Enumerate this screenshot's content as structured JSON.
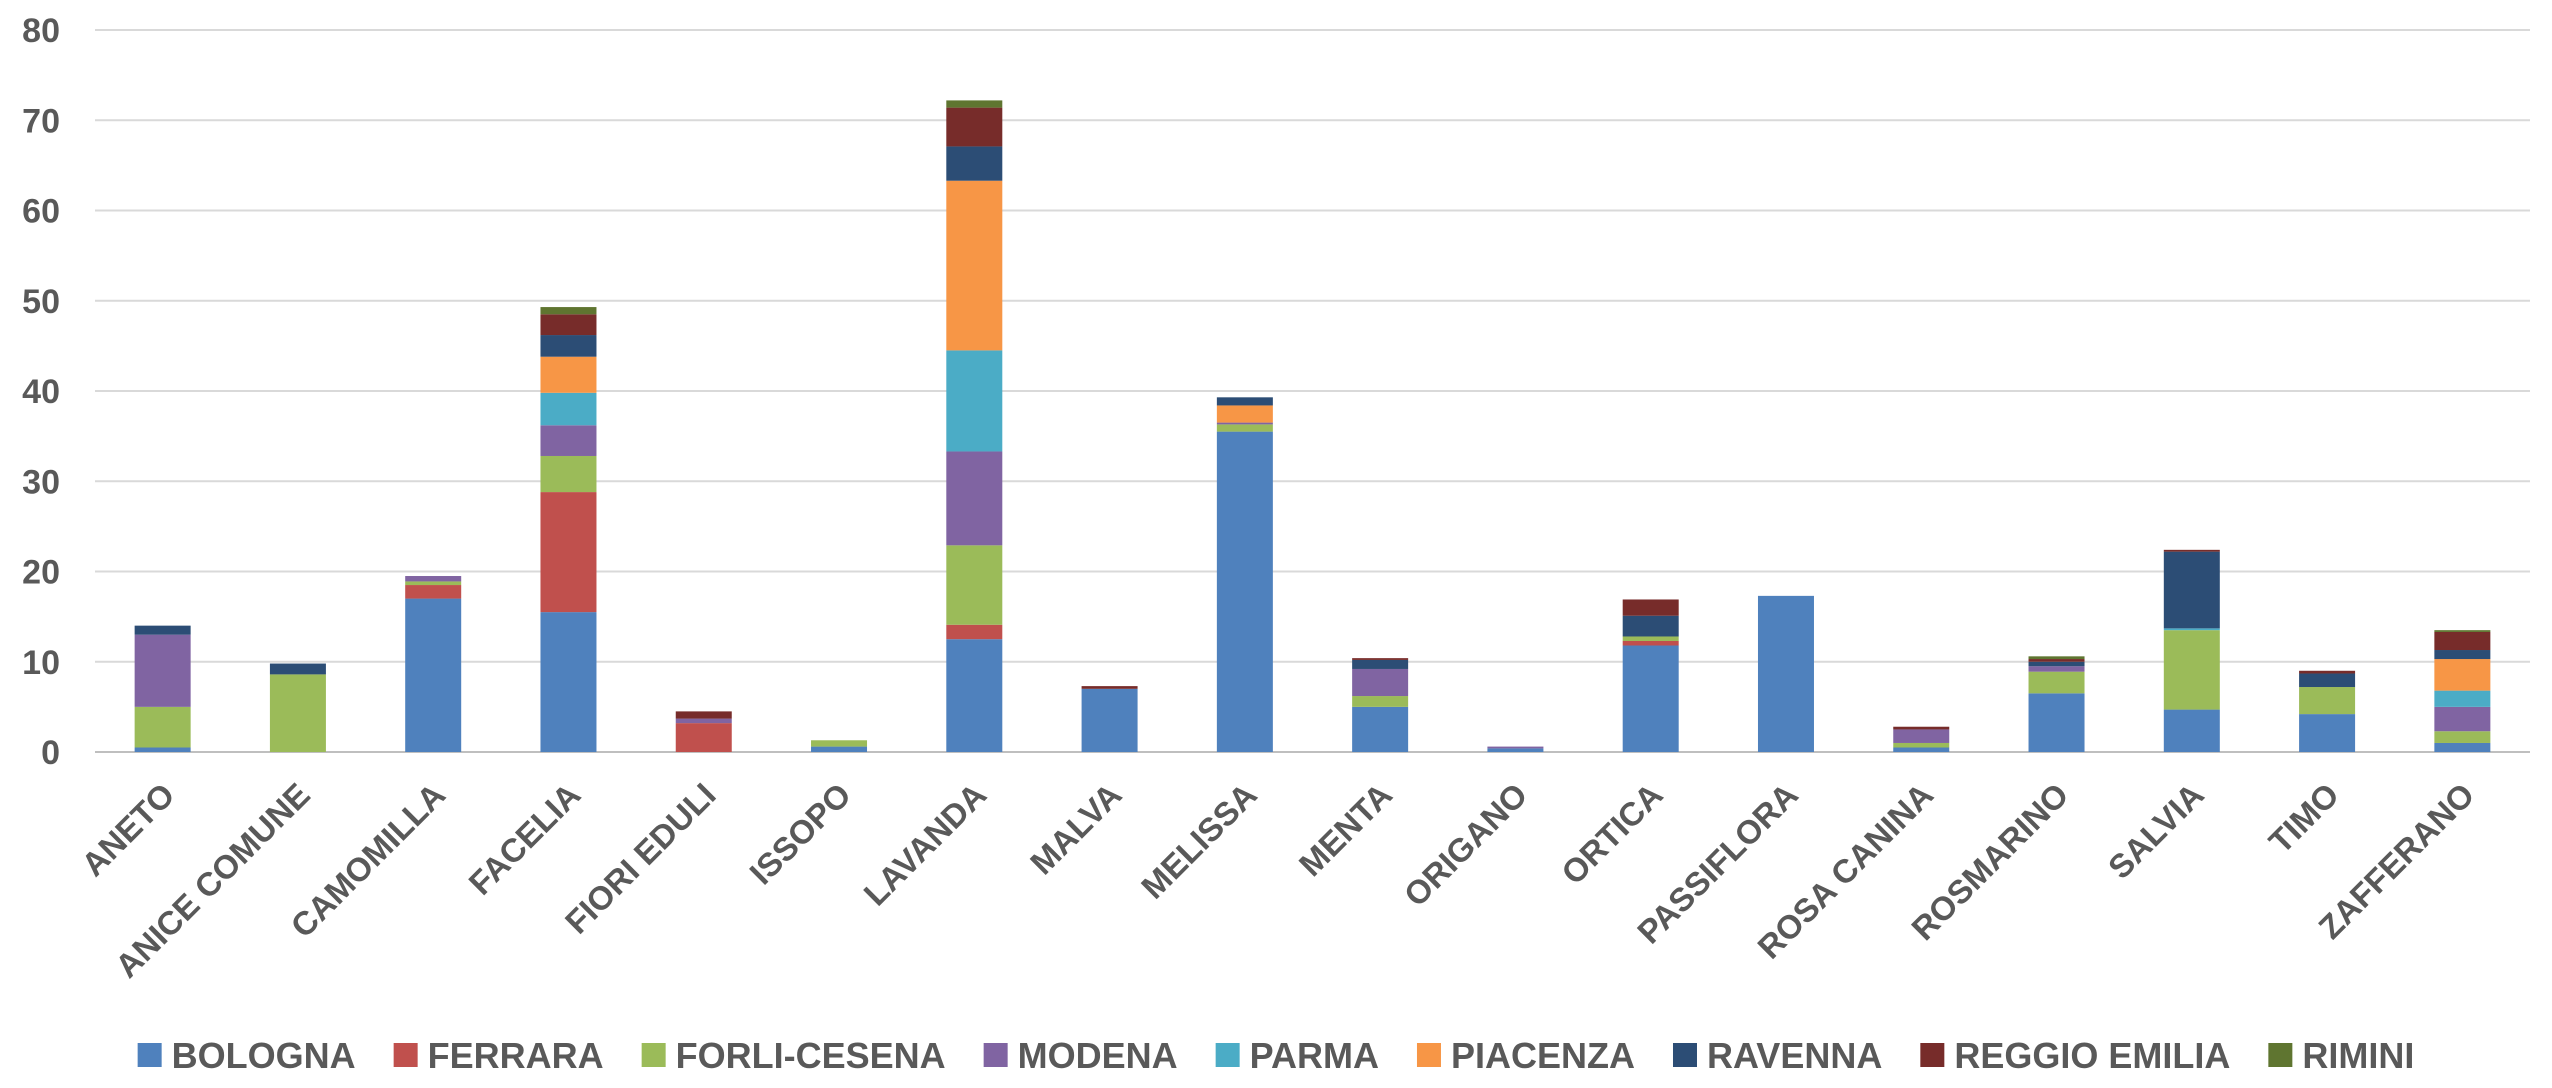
{
  "chart_data": {
    "type": "bar",
    "stacked": true,
    "title": "",
    "xlabel": "",
    "ylabel": "",
    "ylim": [
      0,
      80
    ],
    "yticks": [
      "0",
      "10",
      "20",
      "30",
      "40",
      "50",
      "60",
      "70",
      "80"
    ],
    "grid": true,
    "legend_position": "bottom",
    "categories": [
      "ANETO",
      "ANICE COMUNE",
      "CAMOMILLA",
      "FACELIA",
      "FIORI EDULI",
      "ISSOPO",
      "LAVANDA",
      "MALVA",
      "MELISSA",
      "MENTA",
      "ORIGANO",
      "ORTICA",
      "PASSIFLORA",
      "ROSA CANINA",
      "ROSMARINO",
      "SALVIA",
      "TIMO",
      "ZAFFERANO"
    ],
    "series": [
      {
        "name": "BOLOGNA",
        "color": "#4f81bd",
        "values": [
          0.5,
          0,
          17,
          15.5,
          0,
          0.6,
          12.5,
          7,
          35.5,
          5,
          0.4,
          11.8,
          17.3,
          0.5,
          6.5,
          4.7,
          4.2,
          1
        ]
      },
      {
        "name": "FERRARA",
        "color": "#c0504d",
        "values": [
          0,
          0,
          1.5,
          13.3,
          3.2,
          0,
          1.6,
          0,
          0,
          0,
          0,
          0.5,
          0,
          0,
          0,
          0,
          0,
          0
        ]
      },
      {
        "name": "FORLI-CESENA",
        "color": "#9bbb59",
        "values": [
          4.5,
          8.6,
          0.4,
          4,
          0,
          0.7,
          8.8,
          0,
          0.8,
          1.2,
          0,
          0.5,
          0,
          0.5,
          2.4,
          8.8,
          3,
          1.3
        ]
      },
      {
        "name": "MODENA",
        "color": "#8064a2",
        "values": [
          8,
          0,
          0.6,
          3.4,
          0.5,
          0,
          10.4,
          0,
          0.2,
          3,
          0.2,
          0,
          0,
          1.5,
          0.6,
          0,
          0,
          2.7
        ]
      },
      {
        "name": "PARMA",
        "color": "#4bacc6",
        "values": [
          0,
          0,
          0,
          3.6,
          0,
          0,
          11.2,
          0,
          0,
          0,
          0,
          0,
          0,
          0,
          0,
          0.2,
          0,
          1.8
        ]
      },
      {
        "name": "PIACENZA",
        "color": "#f79646",
        "values": [
          0,
          0,
          0,
          4,
          0,
          0,
          18.8,
          0,
          1.9,
          0,
          0,
          0,
          0,
          0,
          0,
          0,
          0,
          3.5
        ]
      },
      {
        "name": "RAVENNA",
        "color": "#2c4d75",
        "values": [
          1,
          1.2,
          0,
          2.4,
          0,
          0,
          3.8,
          0,
          0.9,
          1,
          0,
          2.3,
          0,
          0,
          0.5,
          8.5,
          1.5,
          1
        ]
      },
      {
        "name": "REGGIO EMILIA",
        "color": "#772c2a",
        "values": [
          0,
          0,
          0,
          2.3,
          0.8,
          0,
          4.3,
          0.3,
          0,
          0.2,
          0,
          1.8,
          0,
          0.3,
          0.3,
          0.2,
          0.3,
          2
        ]
      },
      {
        "name": "RIMINI",
        "color": "#5f7530",
        "values": [
          0,
          0,
          0,
          0.8,
          0,
          0,
          0.8,
          0,
          0,
          0,
          0,
          0,
          0,
          0,
          0.3,
          0,
          0,
          0.2
        ]
      }
    ]
  }
}
